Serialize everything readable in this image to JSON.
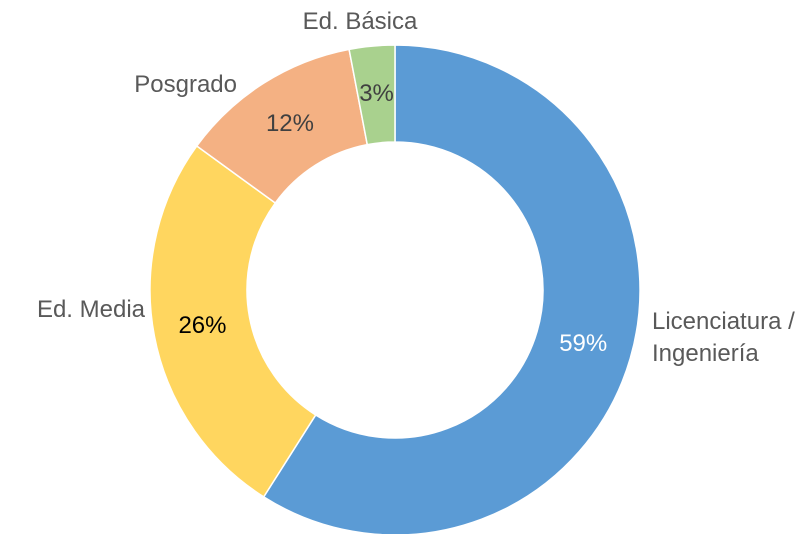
{
  "chart_data": {
    "type": "donut",
    "categories": [
      "Licenciatura / Ingeniería",
      "Ed. Media",
      "Posgrado",
      "Ed. Básica"
    ],
    "values": [
      59,
      26,
      12,
      3
    ],
    "value_labels": [
      "59%",
      "26%",
      "12%",
      "3%"
    ],
    "colors": [
      "#5b9bd5",
      "#ffd65f",
      "#f4b183",
      "#a9d18e"
    ]
  }
}
